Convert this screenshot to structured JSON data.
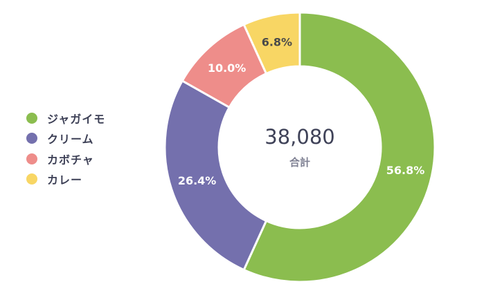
{
  "chart_data": {
    "type": "pie",
    "variant": "donut",
    "total_value": "38,080",
    "total_label": "合計",
    "legend_placement": "left",
    "categories": [
      "ジャガイモ",
      "クリーム",
      "カボチャ",
      "カレー"
    ],
    "values": [
      56.8,
      26.4,
      10.0,
      6.8
    ],
    "value_labels": [
      "56.8%",
      "26.4%",
      "10.0%",
      "6.8%"
    ],
    "colors": [
      "#8bbd4f",
      "#7470ad",
      "#ee8d8a",
      "#f8d664"
    ],
    "label_colors": [
      "#ffffff",
      "#ffffff",
      "#ffffff",
      "#4a4a4a"
    ]
  }
}
